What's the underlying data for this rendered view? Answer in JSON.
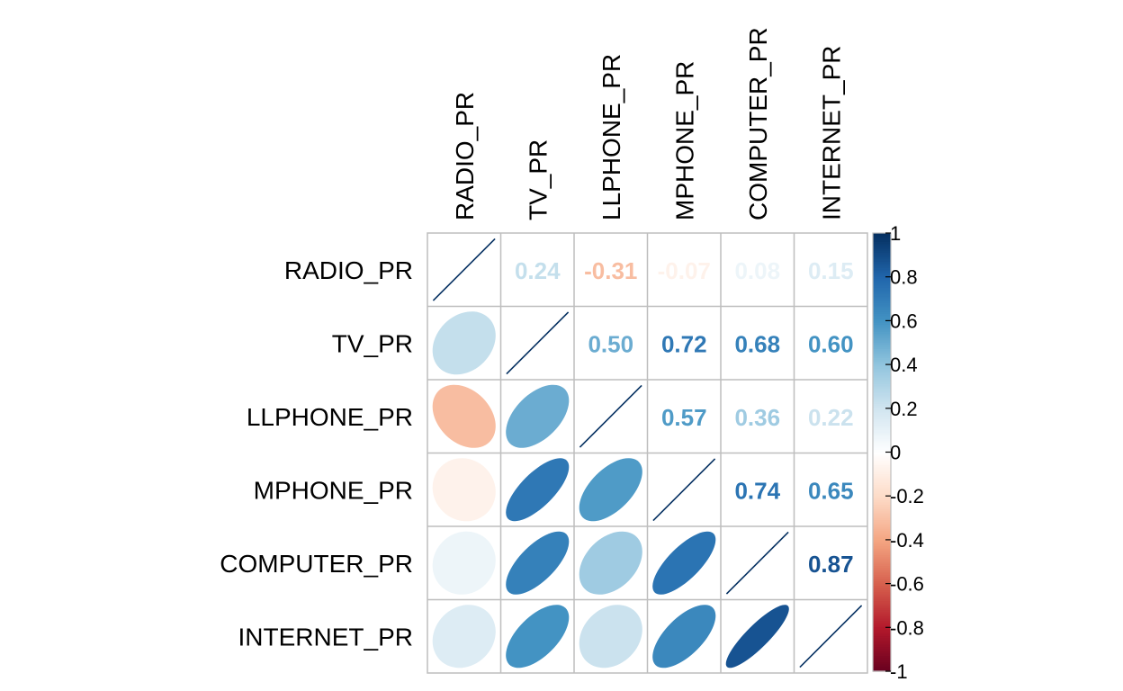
{
  "chart_data": {
    "type": "heatmap",
    "variables": [
      "RADIO_PR",
      "TV_PR",
      "LLPHONE_PR",
      "MPHONE_PR",
      "COMPUTER_PR",
      "INTERNET_PR"
    ],
    "matrix": [
      [
        1.0,
        0.24,
        -0.31,
        -0.07,
        0.08,
        0.15
      ],
      [
        0.24,
        1.0,
        0.5,
        0.72,
        0.68,
        0.6
      ],
      [
        -0.31,
        0.5,
        1.0,
        0.57,
        0.36,
        0.22
      ],
      [
        -0.07,
        0.72,
        0.57,
        1.0,
        0.74,
        0.65
      ],
      [
        0.08,
        0.68,
        0.36,
        0.74,
        1.0,
        0.87
      ],
      [
        0.15,
        0.6,
        0.22,
        0.65,
        0.87,
        1.0
      ]
    ],
    "upper_labels": [
      [
        "",
        "0.24",
        "-0.31",
        "-0.07",
        "0.08",
        "0.15"
      ],
      [
        "",
        "",
        "0.50",
        "0.72",
        "0.68",
        "0.60"
      ],
      [
        "",
        "",
        "",
        "0.57",
        "0.36",
        "0.22"
      ],
      [
        "",
        "",
        "",
        "",
        "0.74",
        "0.65"
      ],
      [
        "",
        "",
        "",
        "",
        "",
        "0.87"
      ],
      [
        "",
        "",
        "",
        "",
        "",
        ""
      ]
    ],
    "lower_method": "ellipse",
    "upper_method": "number",
    "colorbar": {
      "min": -1,
      "max": 1,
      "ticks": [
        "1",
        "0.8",
        "0.6",
        "0.4",
        "0.2",
        "0",
        "-0.2",
        "-0.4",
        "-0.6",
        "-0.8",
        "-1"
      ],
      "tick_values": [
        1,
        0.8,
        0.6,
        0.4,
        0.2,
        0,
        -0.2,
        -0.4,
        -0.6,
        -0.8,
        -1
      ]
    },
    "colors": {
      "negative_end": "#67001f",
      "neutral": "#ffffff",
      "positive_end": "#053061",
      "grid": "#bebebe",
      "label": "#000000"
    }
  }
}
